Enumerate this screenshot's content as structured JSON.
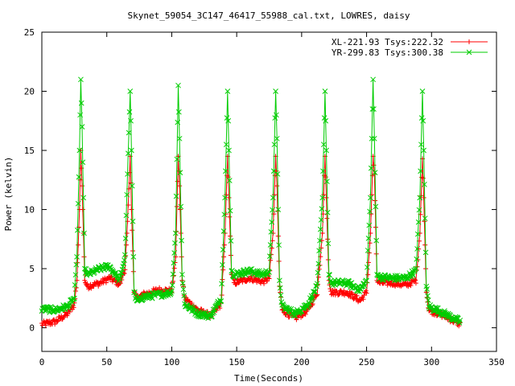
{
  "chart_data": {
    "type": "line",
    "title": "Skynet_59054_3C147_46417_55988_cal.txt, LOWRES, daisy",
    "xlabel": "Time(Seconds)",
    "ylabel": "Power (kelvin)",
    "xlim": [
      0,
      350
    ],
    "ylim": [
      -2,
      25
    ],
    "xticks": [
      0,
      50,
      100,
      150,
      200,
      250,
      300,
      350
    ],
    "yticks": [
      0,
      5,
      10,
      15,
      20,
      25
    ],
    "grid": false,
    "legend_position": "top-right",
    "peaks": [
      30,
      68,
      105,
      143,
      180,
      218,
      255,
      293
    ],
    "series": [
      {
        "name": "XL-221.93 Tsys:222.32",
        "color": "#ff0000",
        "marker": "+",
        "x": [
          0,
          10,
          20,
          25,
          27,
          29,
          30,
          31,
          33,
          35,
          45,
          52,
          60,
          64,
          66,
          68,
          69,
          71,
          73,
          78,
          90,
          100,
          103,
          105,
          106,
          108,
          110,
          120,
          130,
          138,
          141,
          143,
          144,
          146,
          148,
          160,
          170,
          175,
          178,
          180,
          181,
          183,
          185,
          195,
          205,
          212,
          216,
          218,
          219,
          221,
          223,
          235,
          245,
          250,
          253,
          255,
          256,
          258,
          260,
          270,
          280,
          288,
          291,
          293,
          294,
          296,
          298,
          310,
          322
        ],
        "y": [
          0.3,
          0.5,
          1.2,
          2.0,
          4.0,
          10.0,
          15.0,
          12.0,
          4.0,
          3.5,
          3.8,
          4.2,
          3.7,
          5.0,
          9.0,
          14.5,
          10.0,
          3.0,
          2.5,
          2.8,
          3.2,
          3.1,
          6.0,
          14.5,
          12.0,
          4.0,
          2.5,
          1.5,
          1.0,
          2.0,
          8.0,
          14.5,
          11.0,
          4.5,
          3.8,
          4.2,
          3.9,
          4.2,
          8.0,
          14.5,
          12.0,
          3.5,
          1.5,
          0.8,
          1.5,
          3.0,
          8.0,
          14.5,
          11.0,
          4.0,
          3.0,
          3.0,
          2.3,
          3.0,
          8.0,
          14.5,
          13.0,
          4.0,
          3.8,
          3.8,
          3.6,
          4.0,
          8.0,
          14.3,
          11.0,
          3.0,
          1.5,
          1.0,
          0.3
        ]
      },
      {
        "name": "YR-299.83 Tsys:300.38",
        "color": "#00cc00",
        "marker": "x",
        "x": [
          0,
          10,
          20,
          25,
          27,
          29,
          30,
          31,
          33,
          35,
          45,
          52,
          60,
          64,
          66,
          68,
          69,
          71,
          73,
          78,
          90,
          100,
          103,
          105,
          106,
          108,
          110,
          120,
          130,
          138,
          141,
          143,
          144,
          146,
          148,
          160,
          170,
          175,
          178,
          180,
          181,
          183,
          185,
          195,
          205,
          212,
          216,
          218,
          219,
          221,
          223,
          235,
          245,
          250,
          253,
          255,
          256,
          258,
          260,
          270,
          280,
          288,
          291,
          293,
          294,
          296,
          298,
          310,
          322
        ],
        "y": [
          1.6,
          1.5,
          1.8,
          2.5,
          6.0,
          15.0,
          21.0,
          17.0,
          5.0,
          4.5,
          5.0,
          5.2,
          4.0,
          6.0,
          13.0,
          20.0,
          15.0,
          3.0,
          2.2,
          2.6,
          2.8,
          3.0,
          8.0,
          20.5,
          16.0,
          4.5,
          2.0,
          1.2,
          1.0,
          2.5,
          11.0,
          20.0,
          15.0,
          4.8,
          4.5,
          4.8,
          4.5,
          4.8,
          11.0,
          20.0,
          16.0,
          4.0,
          1.8,
          1.2,
          2.0,
          3.5,
          11.0,
          20.0,
          15.0,
          4.5,
          3.8,
          3.8,
          3.2,
          4.0,
          11.0,
          21.0,
          16.0,
          4.5,
          4.3,
          4.2,
          4.2,
          4.8,
          11.0,
          20.0,
          15.0,
          3.5,
          1.8,
          1.2,
          0.5
        ]
      }
    ]
  }
}
